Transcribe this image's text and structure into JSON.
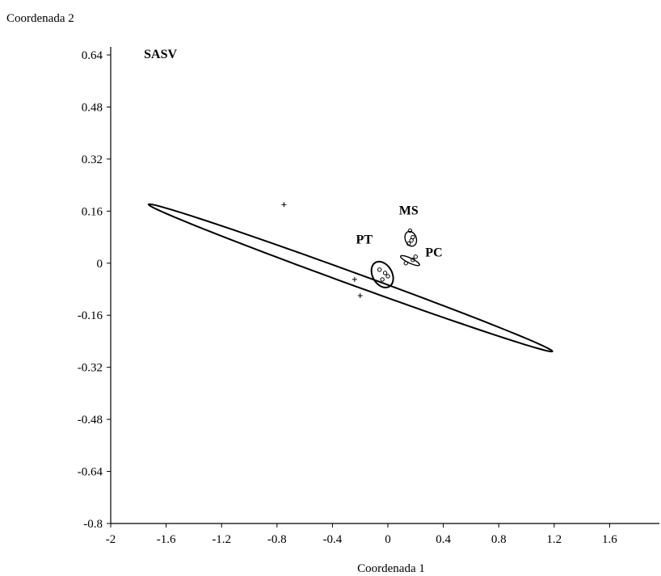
{
  "chart_data": {
    "type": "scatter",
    "title": "",
    "xlabel": "Coordenada 1",
    "ylabel": "Coordenada 2",
    "xlim": [
      -2,
      1.9
    ],
    "ylim": [
      -0.8,
      0.7
    ],
    "x_ticks": [
      "-2",
      "-1.6",
      "-1.2",
      "-0.8",
      "-0.4",
      "0",
      "0.4",
      "0.8",
      "1.2",
      "1.6"
    ],
    "y_ticks": [
      "0.64",
      "0.48",
      "0.32",
      "0.16",
      "0",
      "-0.16",
      "-0.32",
      "-0.48",
      "-0.64",
      "-0.8"
    ],
    "grid": false,
    "groups": [
      {
        "name": "SASV",
        "ellipse": {
          "cx": -0.27,
          "cy": -0.045,
          "rx": 1.55,
          "ry": 0.045,
          "angle_deg": -20
        },
        "label_at": [
          -1.76,
          0.63
        ],
        "points": [
          [
            -0.75,
            0.18
          ],
          [
            -0.24,
            -0.05
          ],
          [
            -0.2,
            -0.1
          ]
        ]
      },
      {
        "name": "PT",
        "ellipse": {
          "cx": -0.04,
          "cy": -0.035,
          "rx": 0.1,
          "ry": 0.07,
          "angle_deg": -60
        },
        "label_at": [
          -0.23,
          0.06
        ],
        "points": [
          [
            -0.06,
            -0.02
          ],
          [
            -0.02,
            -0.03
          ],
          [
            -0.04,
            -0.05
          ],
          [
            0.0,
            -0.04
          ]
        ]
      },
      {
        "name": "MS",
        "ellipse": {
          "cx": 0.165,
          "cy": 0.075,
          "rx": 0.055,
          "ry": 0.04,
          "angle_deg": -70
        },
        "label_at": [
          0.08,
          0.15
        ],
        "points": [
          [
            0.16,
            0.1
          ],
          [
            0.18,
            0.08
          ],
          [
            0.15,
            0.06
          ],
          [
            0.17,
            0.07
          ]
        ]
      },
      {
        "name": "PC",
        "ellipse": {
          "cx": 0.16,
          "cy": 0.008,
          "rx": 0.075,
          "ry": 0.018,
          "angle_deg": -25
        },
        "label_at": [
          0.27,
          0.02
        ],
        "points": [
          [
            0.13,
            0.0
          ],
          [
            0.18,
            0.01
          ],
          [
            0.2,
            0.02
          ]
        ]
      }
    ]
  }
}
